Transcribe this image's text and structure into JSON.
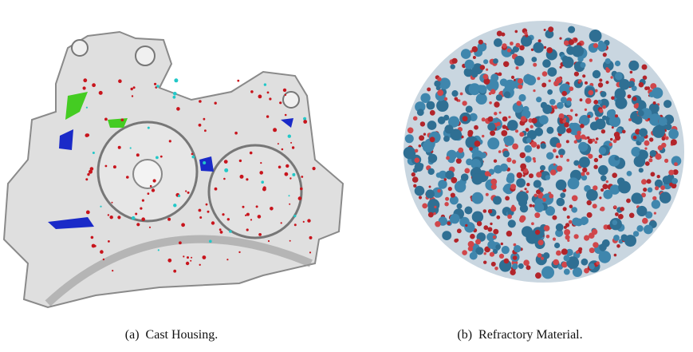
{
  "figure": {
    "subfigures": [
      {
        "label": "(a)",
        "caption": "Cast Housing."
      },
      {
        "label": "(b)",
        "caption": "Refractory Material."
      }
    ]
  }
}
